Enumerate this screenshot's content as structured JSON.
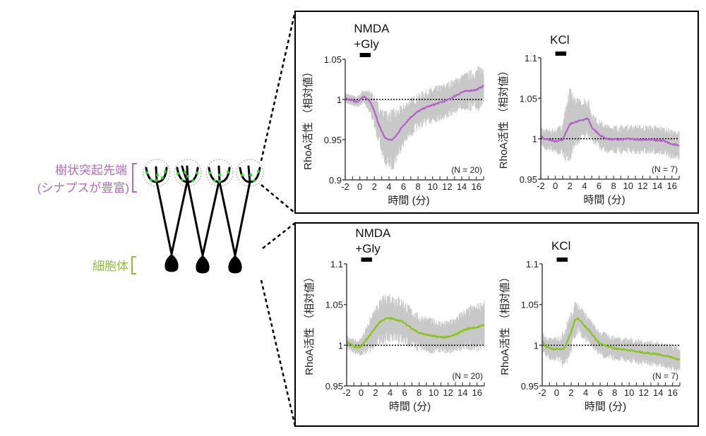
{
  "diagram": {
    "dendrite_label_line1": "樹状突起先端",
    "dendrite_label_line2": "(シナプスが豊富)",
    "soma_label": "細胞体",
    "dendrite_color": "#b26cc0",
    "soma_color": "#8cbf3f",
    "synapse_color": "#22dd22"
  },
  "colors": {
    "purple_trace": "#b660c8",
    "green_trace": "#86c51a",
    "sem_band": "#c8c8c8",
    "axis": "#555555"
  },
  "chart_data": [
    {
      "id": "top-left",
      "type": "line",
      "panel": "dendrite",
      "stimulus_line1": "NMDA",
      "stimulus_line2": "+Gly",
      "stimulus_bar": [
        0,
        1.5
      ],
      "n_label": "(N = 20)",
      "xlabel": "時間 (分)",
      "ylabel": "RhoA活性 （相対値）",
      "xlim": [
        -2,
        17
      ],
      "ylim": [
        0.9,
        1.05
      ],
      "yticks": [
        0.9,
        0.95,
        1,
        1.05
      ],
      "ytick_labels": [
        "0.9",
        "0.95",
        "1",
        "1.05"
      ],
      "xticks": [
        -2,
        0,
        2,
        4,
        6,
        8,
        10,
        12,
        14,
        16
      ],
      "xtick_labels": [
        "-2",
        "0",
        "2",
        "4",
        "6",
        "8",
        "10",
        "12",
        "14",
        "16"
      ],
      "baseline": 1,
      "trace_color": "purple",
      "x": [
        -2,
        -1.5,
        -1,
        -0.5,
        0,
        0.5,
        1,
        1.5,
        2,
        2.5,
        3,
        3.5,
        4,
        4.5,
        5,
        5.5,
        6,
        7,
        8,
        9,
        10,
        11,
        12,
        13,
        14,
        15,
        16,
        17
      ],
      "mean": [
        1.002,
        1.0,
        0.999,
        0.997,
        0.999,
        1.004,
        1.0,
        0.996,
        0.985,
        0.972,
        0.96,
        0.952,
        0.95,
        0.95,
        0.955,
        0.962,
        0.968,
        0.978,
        0.985,
        0.99,
        0.993,
        0.996,
        0.999,
        1.004,
        1.009,
        1.011,
        1.012,
        1.017
      ],
      "sem": [
        0.006,
        0.006,
        0.006,
        0.006,
        0.007,
        0.008,
        0.01,
        0.014,
        0.018,
        0.022,
        0.026,
        0.03,
        0.034,
        0.034,
        0.03,
        0.026,
        0.024,
        0.022,
        0.02,
        0.02,
        0.02,
        0.02,
        0.02,
        0.02,
        0.02,
        0.022,
        0.024,
        0.026
      ]
    },
    {
      "id": "top-right",
      "type": "line",
      "panel": "dendrite",
      "stimulus_line1": "KCl",
      "stimulus_line2": "",
      "stimulus_bar": [
        0,
        1.5
      ],
      "n_label": "(N = 7)",
      "xlabel": "時間 (分)",
      "ylabel": "RhoA活性 （相対値）",
      "xlim": [
        -2,
        17
      ],
      "ylim": [
        0.95,
        1.1
      ],
      "yticks": [
        0.95,
        1,
        1.05,
        1.1
      ],
      "ytick_labels": [
        "0.95",
        "1",
        "1.05",
        "1.1"
      ],
      "xticks": [
        -2,
        0,
        2,
        4,
        6,
        8,
        10,
        12,
        14,
        16
      ],
      "xtick_labels": [
        "-2",
        "0",
        "2",
        "4",
        "6",
        "8",
        "10",
        "12",
        "14",
        "16"
      ],
      "baseline": 1,
      "trace_color": "purple",
      "x": [
        -2,
        -1.5,
        -1,
        -0.5,
        0,
        0.5,
        1,
        1.5,
        2,
        2.5,
        3,
        3.5,
        4,
        4.5,
        5,
        5.5,
        6,
        7,
        8,
        9,
        10,
        11,
        12,
        13,
        14,
        15,
        16,
        17
      ],
      "mean": [
        1.004,
        0.999,
        0.999,
        0.998,
        0.997,
        0.998,
        0.999,
        1.008,
        1.018,
        1.02,
        1.021,
        1.023,
        1.024,
        1.025,
        1.014,
        1.01,
        1.005,
        1.0,
        0.999,
        0.999,
        1.0,
        0.999,
        0.999,
        0.999,
        0.998,
        0.997,
        0.993,
        0.992
      ],
      "sem": [
        0.01,
        0.012,
        0.012,
        0.012,
        0.014,
        0.016,
        0.022,
        0.035,
        0.04,
        0.032,
        0.026,
        0.024,
        0.024,
        0.022,
        0.018,
        0.016,
        0.016,
        0.016,
        0.016,
        0.016,
        0.016,
        0.016,
        0.016,
        0.016,
        0.016,
        0.016,
        0.016,
        0.016
      ]
    },
    {
      "id": "bottom-left",
      "type": "line",
      "panel": "soma",
      "stimulus_line1": "NMDA",
      "stimulus_line2": "+Gly",
      "stimulus_bar": [
        0,
        1.5
      ],
      "n_label": "(N = 20)",
      "xlabel": "時間 (分)",
      "ylabel": "RhoA活性 （相対値）",
      "xlim": [
        -2,
        17
      ],
      "ylim": [
        0.95,
        1.1
      ],
      "yticks": [
        0.95,
        1,
        1.05,
        1.1
      ],
      "ytick_labels": [
        "0.95",
        "1",
        "1.05",
        "1.1"
      ],
      "xticks": [
        -2,
        0,
        2,
        4,
        6,
        8,
        10,
        12,
        14,
        16
      ],
      "xtick_labels": [
        "-2",
        "0",
        "2",
        "4",
        "6",
        "8",
        "10",
        "12",
        "14",
        "16"
      ],
      "baseline": 1,
      "trace_color": "green",
      "x": [
        -2,
        -1.5,
        -1,
        -0.5,
        0,
        0.5,
        1,
        1.5,
        2,
        2.5,
        3,
        3.5,
        4,
        4.5,
        5,
        5.5,
        6,
        7,
        8,
        9,
        10,
        11,
        12,
        13,
        14,
        15,
        16,
        17
      ],
      "mean": [
        1.004,
        1.001,
        0.999,
        0.997,
        0.998,
        1.004,
        1.01,
        1.016,
        1.022,
        1.028,
        1.031,
        1.033,
        1.033,
        1.032,
        1.031,
        1.03,
        1.027,
        1.021,
        1.015,
        1.013,
        1.011,
        1.01,
        1.01,
        1.013,
        1.018,
        1.021,
        1.022,
        1.025
      ],
      "sem": [
        0.008,
        0.008,
        0.008,
        0.008,
        0.01,
        0.014,
        0.018,
        0.02,
        0.022,
        0.024,
        0.026,
        0.028,
        0.028,
        0.028,
        0.027,
        0.026,
        0.025,
        0.022,
        0.02,
        0.02,
        0.019,
        0.018,
        0.018,
        0.02,
        0.022,
        0.024,
        0.026,
        0.028
      ]
    },
    {
      "id": "bottom-right",
      "type": "line",
      "panel": "soma",
      "stimulus_line1": "KCl",
      "stimulus_line2": "",
      "stimulus_bar": [
        0,
        1.5
      ],
      "n_label": "(N = 7)",
      "xlabel": "時間 (分)",
      "ylabel": "RhoA活性 （相対値）",
      "xlim": [
        -2,
        17
      ],
      "ylim": [
        0.95,
        1.1
      ],
      "yticks": [
        0.95,
        1,
        1.05,
        1.1
      ],
      "ytick_labels": [
        "0.95",
        "1",
        "1.05",
        "1.1"
      ],
      "xticks": [
        -2,
        0,
        2,
        4,
        6,
        8,
        10,
        12,
        14,
        16
      ],
      "xtick_labels": [
        "-2",
        "0",
        "2",
        "4",
        "6",
        "8",
        "10",
        "12",
        "14",
        "16"
      ],
      "baseline": 1,
      "trace_color": "green",
      "x": [
        -2,
        -1.5,
        -1,
        -0.5,
        0,
        0.5,
        1,
        1.5,
        2,
        2.5,
        3,
        3.5,
        4,
        4.5,
        5,
        5.5,
        6,
        7,
        8,
        9,
        10,
        11,
        12,
        13,
        14,
        15,
        16,
        17
      ],
      "mean": [
        1.005,
        0.998,
        0.996,
        0.995,
        0.996,
        0.995,
        0.995,
        1.005,
        1.016,
        1.031,
        1.033,
        1.027,
        1.022,
        1.018,
        1.012,
        1.006,
        1.002,
        0.999,
        0.996,
        0.995,
        0.994,
        0.992,
        0.991,
        0.99,
        0.989,
        0.987,
        0.985,
        0.982
      ],
      "sem": [
        0.01,
        0.012,
        0.012,
        0.012,
        0.014,
        0.016,
        0.022,
        0.024,
        0.022,
        0.02,
        0.018,
        0.017,
        0.016,
        0.015,
        0.014,
        0.014,
        0.014,
        0.014,
        0.014,
        0.014,
        0.014,
        0.014,
        0.014,
        0.014,
        0.014,
        0.014,
        0.014,
        0.014
      ]
    }
  ]
}
